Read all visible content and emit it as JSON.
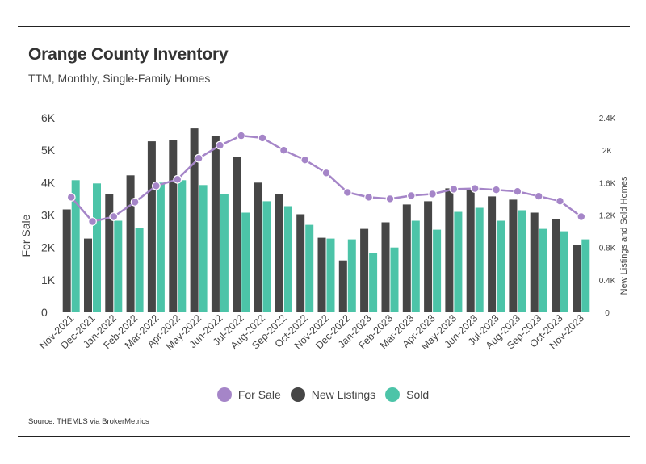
{
  "header": {
    "title": "Orange County Inventory",
    "subtitle": "TTM, Monthly, Single-Family Homes"
  },
  "footer": {
    "source": "Source:  THEMLS via BrokerMetrics"
  },
  "colors": {
    "for_sale": "#a585c8",
    "new_listings": "#464646",
    "sold": "#4cc4a8"
  },
  "legend": [
    {
      "label": "For Sale",
      "color": "#a585c8"
    },
    {
      "label": "New Listings",
      "color": "#464646"
    },
    {
      "label": "Sold",
      "color": "#4cc4a8"
    }
  ],
  "chart_data": {
    "type": "bar",
    "title": "Orange County Inventory",
    "subtitle": "TTM, Monthly, Single-Family Homes",
    "categories": [
      "Nov-2021",
      "Dec-2021",
      "Jan-2022",
      "Feb-2022",
      "Mar-2022",
      "Apr-2022",
      "May-2022",
      "Jun-2022",
      "Jul-2022",
      "Aug-2022",
      "Sep-2022",
      "Oct-2022",
      "Nov-2022",
      "Dec-2022",
      "Jan-2023",
      "Feb-2023",
      "Mar-2023",
      "Apr-2023",
      "May-2023",
      "Jun-2023",
      "Jul-2023",
      "Aug-2023",
      "Sep-2023",
      "Oct-2023",
      "Nov-2023"
    ],
    "ylabel": "For Sale",
    "y2label": "New Listings and Sold Homes",
    "ylim": [
      0,
      6000
    ],
    "y2lim": [
      0,
      2400
    ],
    "yticks": [
      "0",
      "1K",
      "2K",
      "3K",
      "4K",
      "5K",
      "6K"
    ],
    "y2ticks": [
      "0",
      "0.4K",
      "0.8K",
      "1.2K",
      "1.6K",
      "2K",
      "2.4K"
    ],
    "legend_position": "bottom",
    "grid": false,
    "series": [
      {
        "name": "New Listings",
        "type": "bar",
        "axis": "right",
        "values": [
          1270,
          910,
          1460,
          1690,
          2110,
          2130,
          2270,
          2180,
          1920,
          1600,
          1460,
          1210,
          920,
          640,
          1030,
          1110,
          1330,
          1370,
          1530,
          1510,
          1430,
          1390,
          1230,
          1150,
          830
        ]
      },
      {
        "name": "Sold",
        "type": "bar",
        "axis": "right",
        "values": [
          1630,
          1590,
          1130,
          1040,
          1600,
          1630,
          1570,
          1460,
          1230,
          1370,
          1310,
          1080,
          910,
          900,
          730,
          800,
          1130,
          1020,
          1240,
          1290,
          1130,
          1260,
          1030,
          1000,
          900
        ]
      },
      {
        "name": "For Sale",
        "type": "line",
        "axis": "left",
        "values": [
          3550,
          2800,
          2950,
          3400,
          3900,
          4100,
          4750,
          5150,
          5450,
          5380,
          5000,
          4700,
          4300,
          3700,
          3550,
          3500,
          3600,
          3650,
          3800,
          3820,
          3780,
          3730,
          3580,
          3430,
          2950
        ]
      }
    ]
  }
}
